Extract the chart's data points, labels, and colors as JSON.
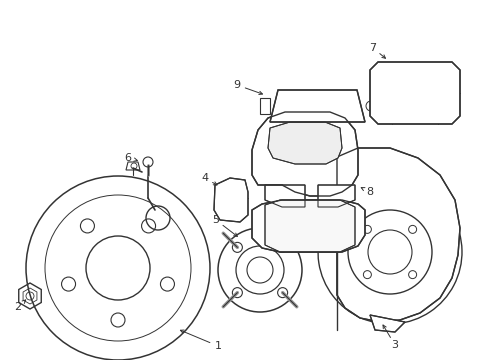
{
  "bg_color": "#ffffff",
  "line_color": "#333333",
  "lw": 0.9,
  "fig_w": 4.89,
  "fig_h": 3.6,
  "dpi": 100
}
